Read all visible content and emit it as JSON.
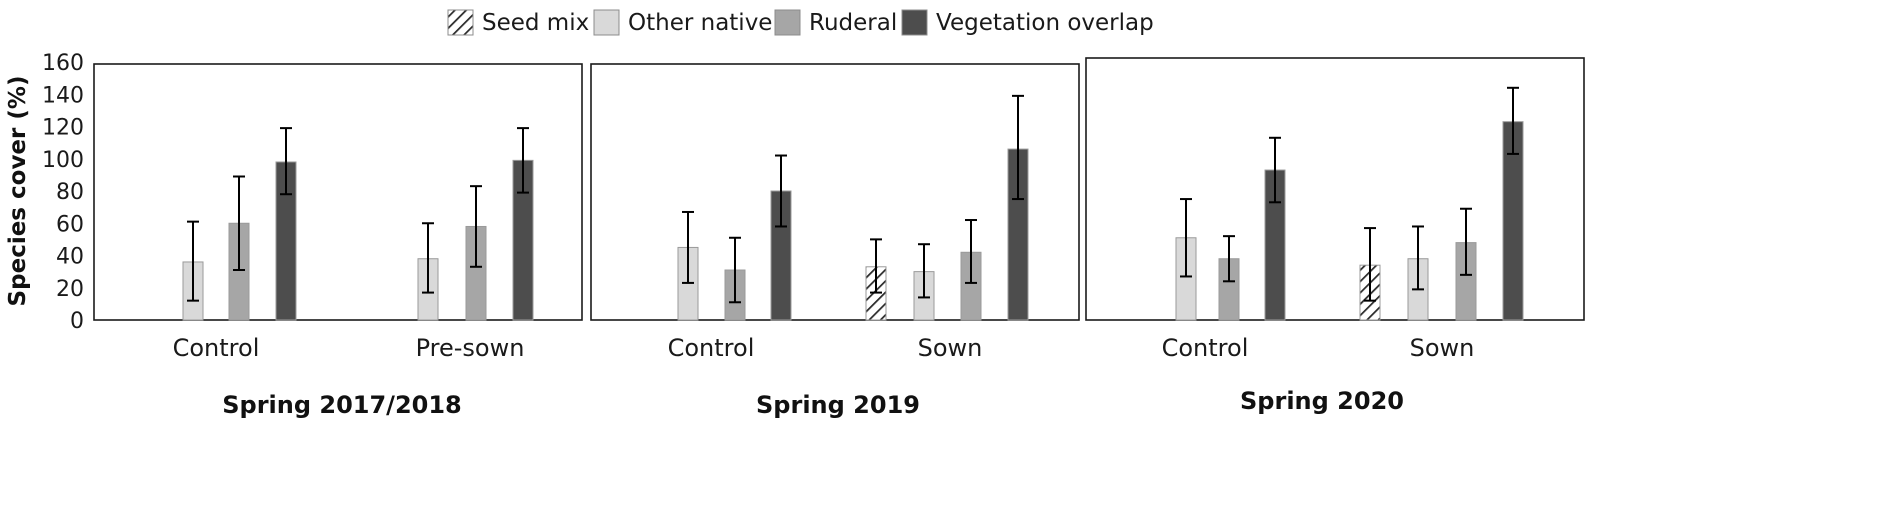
{
  "chart_data": {
    "type": "bar",
    "ylabel": "Species cover (%)",
    "ylim": [
      0,
      160
    ],
    "yticks": [
      0,
      20,
      40,
      60,
      80,
      100,
      120,
      140,
      160
    ],
    "legend": [
      {
        "key": "seed",
        "name": "Seed mix",
        "color": "#ffffff",
        "pattern": "hatch"
      },
      {
        "key": "native",
        "name": "Other native",
        "color": "#d9d9d9"
      },
      {
        "key": "ruderal",
        "name": "Ruderal",
        "color": "#a6a6a6"
      },
      {
        "key": "overlap",
        "name": "Vegetation overlap",
        "color": "#4d4d4d"
      }
    ],
    "panels": [
      {
        "title": "Spring 2017/2018",
        "groups": [
          {
            "label": "Control",
            "bars": [
              {
                "series": "native",
                "value": 36,
                "low": 12,
                "high": 61
              },
              {
                "series": "ruderal",
                "value": 60,
                "low": 31,
                "high": 89
              },
              {
                "series": "overlap",
                "value": 98,
                "low": 78,
                "high": 119
              }
            ]
          },
          {
            "label": "Pre-sown",
            "bars": [
              {
                "series": "native",
                "value": 38,
                "low": 17,
                "high": 60
              },
              {
                "series": "ruderal",
                "value": 58,
                "low": 33,
                "high": 83
              },
              {
                "series": "overlap",
                "value": 99,
                "low": 79,
                "high": 119
              }
            ]
          }
        ]
      },
      {
        "title": "Spring 2019",
        "groups": [
          {
            "label": "Control",
            "bars": [
              {
                "series": "native",
                "value": 45,
                "low": 23,
                "high": 67
              },
              {
                "series": "ruderal",
                "value": 31,
                "low": 11,
                "high": 51
              },
              {
                "series": "overlap",
                "value": 80,
                "low": 58,
                "high": 102
              }
            ]
          },
          {
            "label": "Sown",
            "bars": [
              {
                "series": "seed",
                "value": 33,
                "low": 17,
                "high": 50
              },
              {
                "series": "native",
                "value": 30,
                "low": 14,
                "high": 47
              },
              {
                "series": "ruderal",
                "value": 42,
                "low": 23,
                "high": 62
              },
              {
                "series": "overlap",
                "value": 106,
                "low": 75,
                "high": 139
              }
            ]
          }
        ]
      },
      {
        "title": "Spring 2020",
        "groups": [
          {
            "label": "Control",
            "bars": [
              {
                "series": "native",
                "value": 51,
                "low": 27,
                "high": 75
              },
              {
                "series": "ruderal",
                "value": 38,
                "low": 24,
                "high": 52
              },
              {
                "series": "overlap",
                "value": 93,
                "low": 73,
                "high": 113
              }
            ]
          },
          {
            "label": "Sown",
            "bars": [
              {
                "series": "seed",
                "value": 34,
                "low": 12,
                "high": 57
              },
              {
                "series": "native",
                "value": 38,
                "low": 19,
                "high": 58
              },
              {
                "series": "ruderal",
                "value": 48,
                "low": 28,
                "high": 69
              },
              {
                "series": "overlap",
                "value": 123,
                "low": 103,
                "high": 144
              }
            ]
          }
        ]
      }
    ]
  }
}
